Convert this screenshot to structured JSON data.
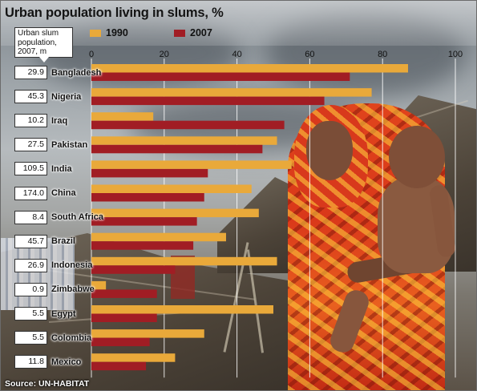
{
  "title": "Urban population living in slums, %",
  "unit_label": "Urban slum population, 2007, m",
  "source": "Source: UN-HABITAT",
  "colors": {
    "series_1990": "#e9a93a",
    "series_2007": "#a11d24",
    "background_photo": "slum scene with mother and child"
  },
  "chart_data": {
    "type": "bar",
    "orientation": "horizontal",
    "title": "Urban population living in slums, %",
    "xlabel": "",
    "ylabel": "",
    "xlim": [
      0,
      100
    ],
    "xticks": [
      "0",
      "20",
      "40",
      "60",
      "80",
      "100"
    ],
    "grid": true,
    "legend_placement": "top",
    "categories": [
      "Bangladesh",
      "Nigeria",
      "Iraq",
      "Pakistan",
      "India",
      "China",
      "South Africa",
      "Brazil",
      "Indonesia",
      "Zimbabwe",
      "Egypt",
      "Colombia",
      "Mexico"
    ],
    "slum_population_2007_m": [
      "29.9",
      "45.3",
      "10.2",
      "27.5",
      "109.5",
      "174.0",
      "8.4",
      "45.7",
      "26.9",
      "0.9",
      "5.5",
      "5.5",
      "11.8"
    ],
    "series": [
      {
        "name": "1990",
        "color": "#e9a93a",
        "values": [
          87,
          77,
          17,
          51,
          55,
          44,
          46,
          37,
          51,
          4,
          50,
          31,
          23
        ]
      },
      {
        "name": "2007",
        "color": "#a11d24",
        "values": [
          71,
          64,
          53,
          47,
          32,
          31,
          29,
          28,
          23,
          18,
          18,
          16,
          15
        ]
      }
    ]
  }
}
